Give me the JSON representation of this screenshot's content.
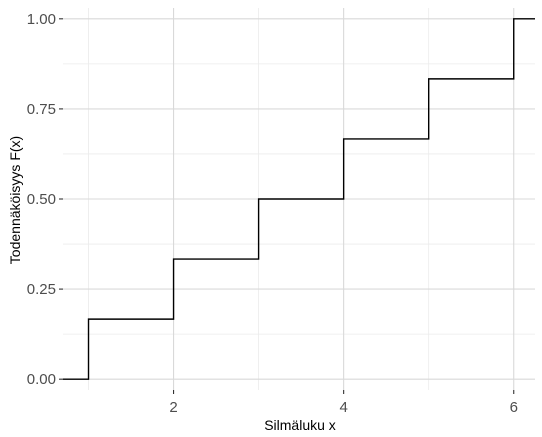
{
  "chart_data": {
    "type": "line",
    "style": "step",
    "xlabel": "Silmäluku x",
    "ylabel": "Todennäköisyys F(x)",
    "xlim": [
      0.7,
      6.25
    ],
    "ylim": [
      -0.03,
      1.03
    ],
    "x_ticks": [
      2,
      4,
      6
    ],
    "x_tick_labels": [
      "2",
      "4",
      "6"
    ],
    "y_ticks": [
      0,
      0.25,
      0.5,
      0.75,
      1
    ],
    "y_tick_labels": [
      "0.00",
      "0.25",
      "0.50",
      "0.75",
      "1.00"
    ],
    "grid": true,
    "series": [
      {
        "x": [
          0.7,
          1,
          2,
          3,
          4,
          5,
          6,
          6.25
        ],
        "values": [
          0,
          0.1667,
          0.3333,
          0.5,
          0.6667,
          0.8333,
          1,
          1
        ]
      }
    ]
  },
  "colors": {
    "line": "#000000",
    "grid_major": "#d9d9d9",
    "grid_minor": "#ebebeb",
    "tick_text": "#4d4d4d"
  }
}
